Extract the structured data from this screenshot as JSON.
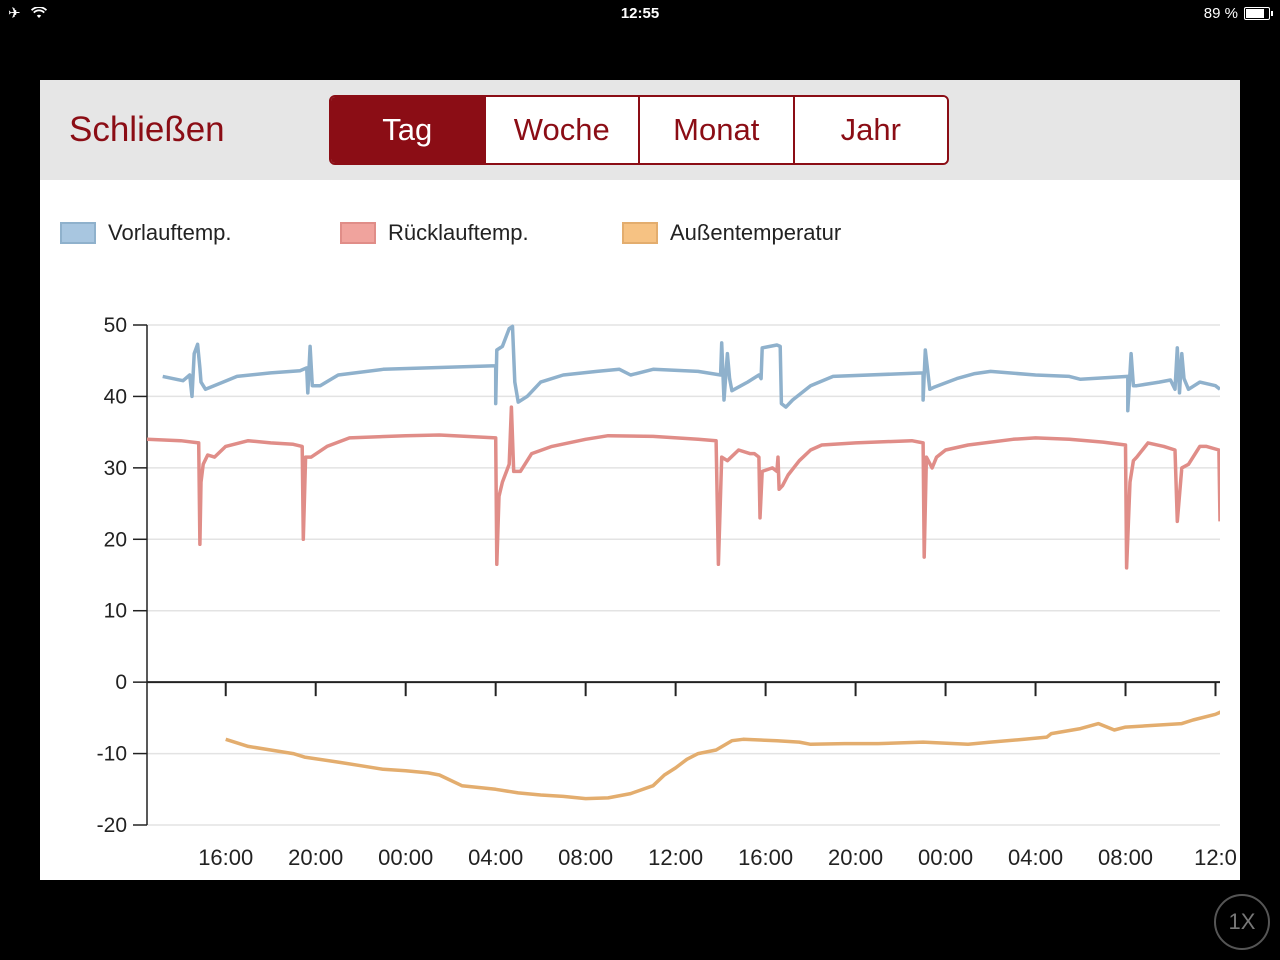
{
  "statusbar": {
    "time": "12:55",
    "battery": "89 %",
    "battery_level": 0.89
  },
  "toolbar": {
    "close_label": "Schließen",
    "tabs": [
      {
        "label": "Tag",
        "active": true
      },
      {
        "label": "Woche",
        "active": false
      },
      {
        "label": "Monat",
        "active": false
      },
      {
        "label": "Jahr",
        "active": false
      }
    ]
  },
  "colors": {
    "accent": "#8b0d15",
    "vorlauf": "#8fb1cc",
    "ruecklauf": "#e08d88",
    "aussen": "#e3ad6e"
  },
  "zoom_label": "1X",
  "chart_data": {
    "type": "line",
    "title": "",
    "xlabel": "",
    "ylabel": "",
    "ylim": [
      -20,
      50
    ],
    "yticks": [
      -20,
      -10,
      0,
      10,
      20,
      30,
      40,
      50
    ],
    "xlim": [
      12.5,
      60.2
    ],
    "xticks": [
      {
        "x": 16,
        "label": "16:00"
      },
      {
        "x": 20,
        "label": "20:00"
      },
      {
        "x": 24,
        "label": "00:00"
      },
      {
        "x": 28,
        "label": "04:00"
      },
      {
        "x": 32,
        "label": "08:00"
      },
      {
        "x": 36,
        "label": "12:00"
      },
      {
        "x": 40,
        "label": "16:00"
      },
      {
        "x": 44,
        "label": "20:00"
      },
      {
        "x": 48,
        "label": "00:00"
      },
      {
        "x": 52,
        "label": "04:00"
      },
      {
        "x": 56,
        "label": "08:00"
      },
      {
        "x": 60,
        "label": "12:0"
      }
    ],
    "legend": "top-left",
    "grid": true,
    "series": [
      {
        "name": "Vorlauftemp.",
        "color": "#8fb1cc",
        "points": [
          [
            13.2,
            42.8
          ],
          [
            14.1,
            42.2
          ],
          [
            14.4,
            43.0
          ],
          [
            14.5,
            40.0
          ],
          [
            14.6,
            46.0
          ],
          [
            14.75,
            47.3
          ],
          [
            14.85,
            44.0
          ],
          [
            14.9,
            42.0
          ],
          [
            15.1,
            41.0
          ],
          [
            16.5,
            42.8
          ],
          [
            18.0,
            43.3
          ],
          [
            19.3,
            43.6
          ],
          [
            19.6,
            44.0
          ],
          [
            19.65,
            40.5
          ],
          [
            19.75,
            47.0
          ],
          [
            19.85,
            41.5
          ],
          [
            20.2,
            41.5
          ],
          [
            21.0,
            43.0
          ],
          [
            23.0,
            43.8
          ],
          [
            28.0,
            44.3
          ],
          [
            28.0,
            39.0
          ],
          [
            28.05,
            46.5
          ],
          [
            28.3,
            47.0
          ],
          [
            28.6,
            49.5
          ],
          [
            28.75,
            49.8
          ],
          [
            28.85,
            42.0
          ],
          [
            29.0,
            39.2
          ],
          [
            29.4,
            40.0
          ],
          [
            30.0,
            42.0
          ],
          [
            31.0,
            43.0
          ],
          [
            32.5,
            43.5
          ],
          [
            33.5,
            43.8
          ],
          [
            34.0,
            43.0
          ],
          [
            35.0,
            43.8
          ],
          [
            37.0,
            43.5
          ],
          [
            38.0,
            43.0
          ],
          [
            38.05,
            47.5
          ],
          [
            38.15,
            39.5
          ],
          [
            38.3,
            46.0
          ],
          [
            38.4,
            42.5
          ],
          [
            38.5,
            40.8
          ],
          [
            39.2,
            42.0
          ],
          [
            39.7,
            43.0
          ],
          [
            39.8,
            42.5
          ],
          [
            39.85,
            46.8
          ],
          [
            40.5,
            47.2
          ],
          [
            40.65,
            47.0
          ],
          [
            40.7,
            39.0
          ],
          [
            40.9,
            38.5
          ],
          [
            41.2,
            39.5
          ],
          [
            42.0,
            41.5
          ],
          [
            43.0,
            42.8
          ],
          [
            47.0,
            43.3
          ],
          [
            47.0,
            39.5
          ],
          [
            47.1,
            46.5
          ],
          [
            47.3,
            41.0
          ],
          [
            47.5,
            41.3
          ],
          [
            48.5,
            42.5
          ],
          [
            49.3,
            43.2
          ],
          [
            50.0,
            43.5
          ],
          [
            52.0,
            43.0
          ],
          [
            53.5,
            42.8
          ],
          [
            54.0,
            42.4
          ],
          [
            56.1,
            42.8
          ],
          [
            56.1,
            38.0
          ],
          [
            56.25,
            46.0
          ],
          [
            56.35,
            41.5
          ],
          [
            56.5,
            41.5
          ],
          [
            57.5,
            42.0
          ],
          [
            58.0,
            42.3
          ],
          [
            58.2,
            41.0
          ],
          [
            58.3,
            46.8
          ],
          [
            58.4,
            40.5
          ],
          [
            58.5,
            46.0
          ],
          [
            58.6,
            42.5
          ],
          [
            58.8,
            41.0
          ],
          [
            59.3,
            42.0
          ],
          [
            60.0,
            41.5
          ],
          [
            60.2,
            41.0
          ]
        ]
      },
      {
        "name": "Rücklauftemp.",
        "color": "#e08d88",
        "points": [
          [
            12.5,
            34.0
          ],
          [
            14.0,
            33.8
          ],
          [
            14.8,
            33.5
          ],
          [
            14.85,
            19.3
          ],
          [
            14.9,
            28.0
          ],
          [
            15.0,
            30.5
          ],
          [
            15.2,
            31.8
          ],
          [
            15.5,
            31.5
          ],
          [
            16.0,
            33.0
          ],
          [
            17.0,
            33.8
          ],
          [
            18.0,
            33.5
          ],
          [
            19.0,
            33.3
          ],
          [
            19.4,
            33.0
          ],
          [
            19.45,
            20.0
          ],
          [
            19.55,
            31.5
          ],
          [
            19.8,
            31.5
          ],
          [
            20.5,
            33.0
          ],
          [
            21.5,
            34.2
          ],
          [
            24.0,
            34.5
          ],
          [
            25.5,
            34.6
          ],
          [
            28.0,
            34.2
          ],
          [
            28.05,
            16.5
          ],
          [
            28.15,
            26.0
          ],
          [
            28.3,
            28.0
          ],
          [
            28.6,
            30.5
          ],
          [
            28.7,
            38.5
          ],
          [
            28.8,
            29.5
          ],
          [
            29.1,
            29.5
          ],
          [
            29.6,
            32.0
          ],
          [
            30.5,
            33.0
          ],
          [
            32.0,
            34.0
          ],
          [
            33.0,
            34.5
          ],
          [
            35.0,
            34.4
          ],
          [
            37.0,
            34.0
          ],
          [
            37.8,
            33.8
          ],
          [
            37.9,
            16.5
          ],
          [
            38.05,
            31.5
          ],
          [
            38.3,
            31.0
          ],
          [
            38.8,
            32.5
          ],
          [
            39.3,
            32.0
          ],
          [
            39.5,
            32.0
          ],
          [
            39.7,
            31.5
          ],
          [
            39.75,
            23.0
          ],
          [
            39.85,
            29.5
          ],
          [
            40.3,
            30.0
          ],
          [
            40.5,
            29.5
          ],
          [
            40.55,
            31.5
          ],
          [
            40.6,
            27.0
          ],
          [
            40.75,
            27.5
          ],
          [
            41.0,
            29.0
          ],
          [
            41.5,
            31.0
          ],
          [
            42.0,
            32.5
          ],
          [
            42.5,
            33.2
          ],
          [
            44.0,
            33.5
          ],
          [
            46.5,
            33.8
          ],
          [
            47.0,
            33.5
          ],
          [
            47.05,
            17.5
          ],
          [
            47.15,
            31.5
          ],
          [
            47.4,
            30.0
          ],
          [
            47.6,
            31.5
          ],
          [
            48.0,
            32.5
          ],
          [
            49.0,
            33.2
          ],
          [
            51.0,
            34.0
          ],
          [
            52.0,
            34.2
          ],
          [
            53.5,
            34.0
          ],
          [
            55.0,
            33.6
          ],
          [
            56.0,
            33.2
          ],
          [
            56.05,
            16.0
          ],
          [
            56.2,
            28.0
          ],
          [
            56.35,
            31.0
          ],
          [
            56.5,
            31.5
          ],
          [
            57.0,
            33.5
          ],
          [
            57.7,
            33.0
          ],
          [
            58.2,
            32.5
          ],
          [
            58.3,
            22.5
          ],
          [
            58.5,
            30.0
          ],
          [
            58.8,
            30.5
          ],
          [
            59.3,
            33.0
          ],
          [
            59.6,
            33.0
          ],
          [
            60.15,
            32.5
          ],
          [
            60.2,
            22.5
          ]
        ]
      },
      {
        "name": "Außentemperatur",
        "color": "#e3ad6e",
        "points": [
          [
            16.0,
            -8.0
          ],
          [
            17.0,
            -9.0
          ],
          [
            18.0,
            -9.5
          ],
          [
            19.0,
            -10.0
          ],
          [
            19.5,
            -10.5
          ],
          [
            21.0,
            -11.2
          ],
          [
            22.0,
            -11.7
          ],
          [
            23.0,
            -12.2
          ],
          [
            24.0,
            -12.4
          ],
          [
            25.0,
            -12.7
          ],
          [
            25.5,
            -13.0
          ],
          [
            26.5,
            -14.5
          ],
          [
            28.0,
            -15.0
          ],
          [
            29.0,
            -15.5
          ],
          [
            30.0,
            -15.8
          ],
          [
            31.0,
            -16.0
          ],
          [
            32.0,
            -16.3
          ],
          [
            33.0,
            -16.2
          ],
          [
            34.0,
            -15.6
          ],
          [
            35.0,
            -14.5
          ],
          [
            35.5,
            -13.0
          ],
          [
            36.0,
            -12.0
          ],
          [
            36.5,
            -10.8
          ],
          [
            37.0,
            -10.0
          ],
          [
            37.8,
            -9.5
          ],
          [
            38.5,
            -8.2
          ],
          [
            39.0,
            -8.0
          ],
          [
            40.5,
            -8.2
          ],
          [
            41.5,
            -8.4
          ],
          [
            42.0,
            -8.7
          ],
          [
            43.5,
            -8.6
          ],
          [
            45.0,
            -8.6
          ],
          [
            47.0,
            -8.4
          ],
          [
            49.0,
            -8.7
          ],
          [
            50.0,
            -8.4
          ],
          [
            51.5,
            -8.0
          ],
          [
            52.5,
            -7.7
          ],
          [
            52.7,
            -7.2
          ],
          [
            54.0,
            -6.5
          ],
          [
            54.8,
            -5.8
          ],
          [
            55.5,
            -6.7
          ],
          [
            56.0,
            -6.3
          ],
          [
            57.5,
            -6.0
          ],
          [
            58.5,
            -5.8
          ],
          [
            59.0,
            -5.3
          ],
          [
            60.0,
            -4.5
          ],
          [
            60.5,
            -3.8
          ],
          [
            61.5,
            -3.5
          ]
        ]
      }
    ]
  }
}
